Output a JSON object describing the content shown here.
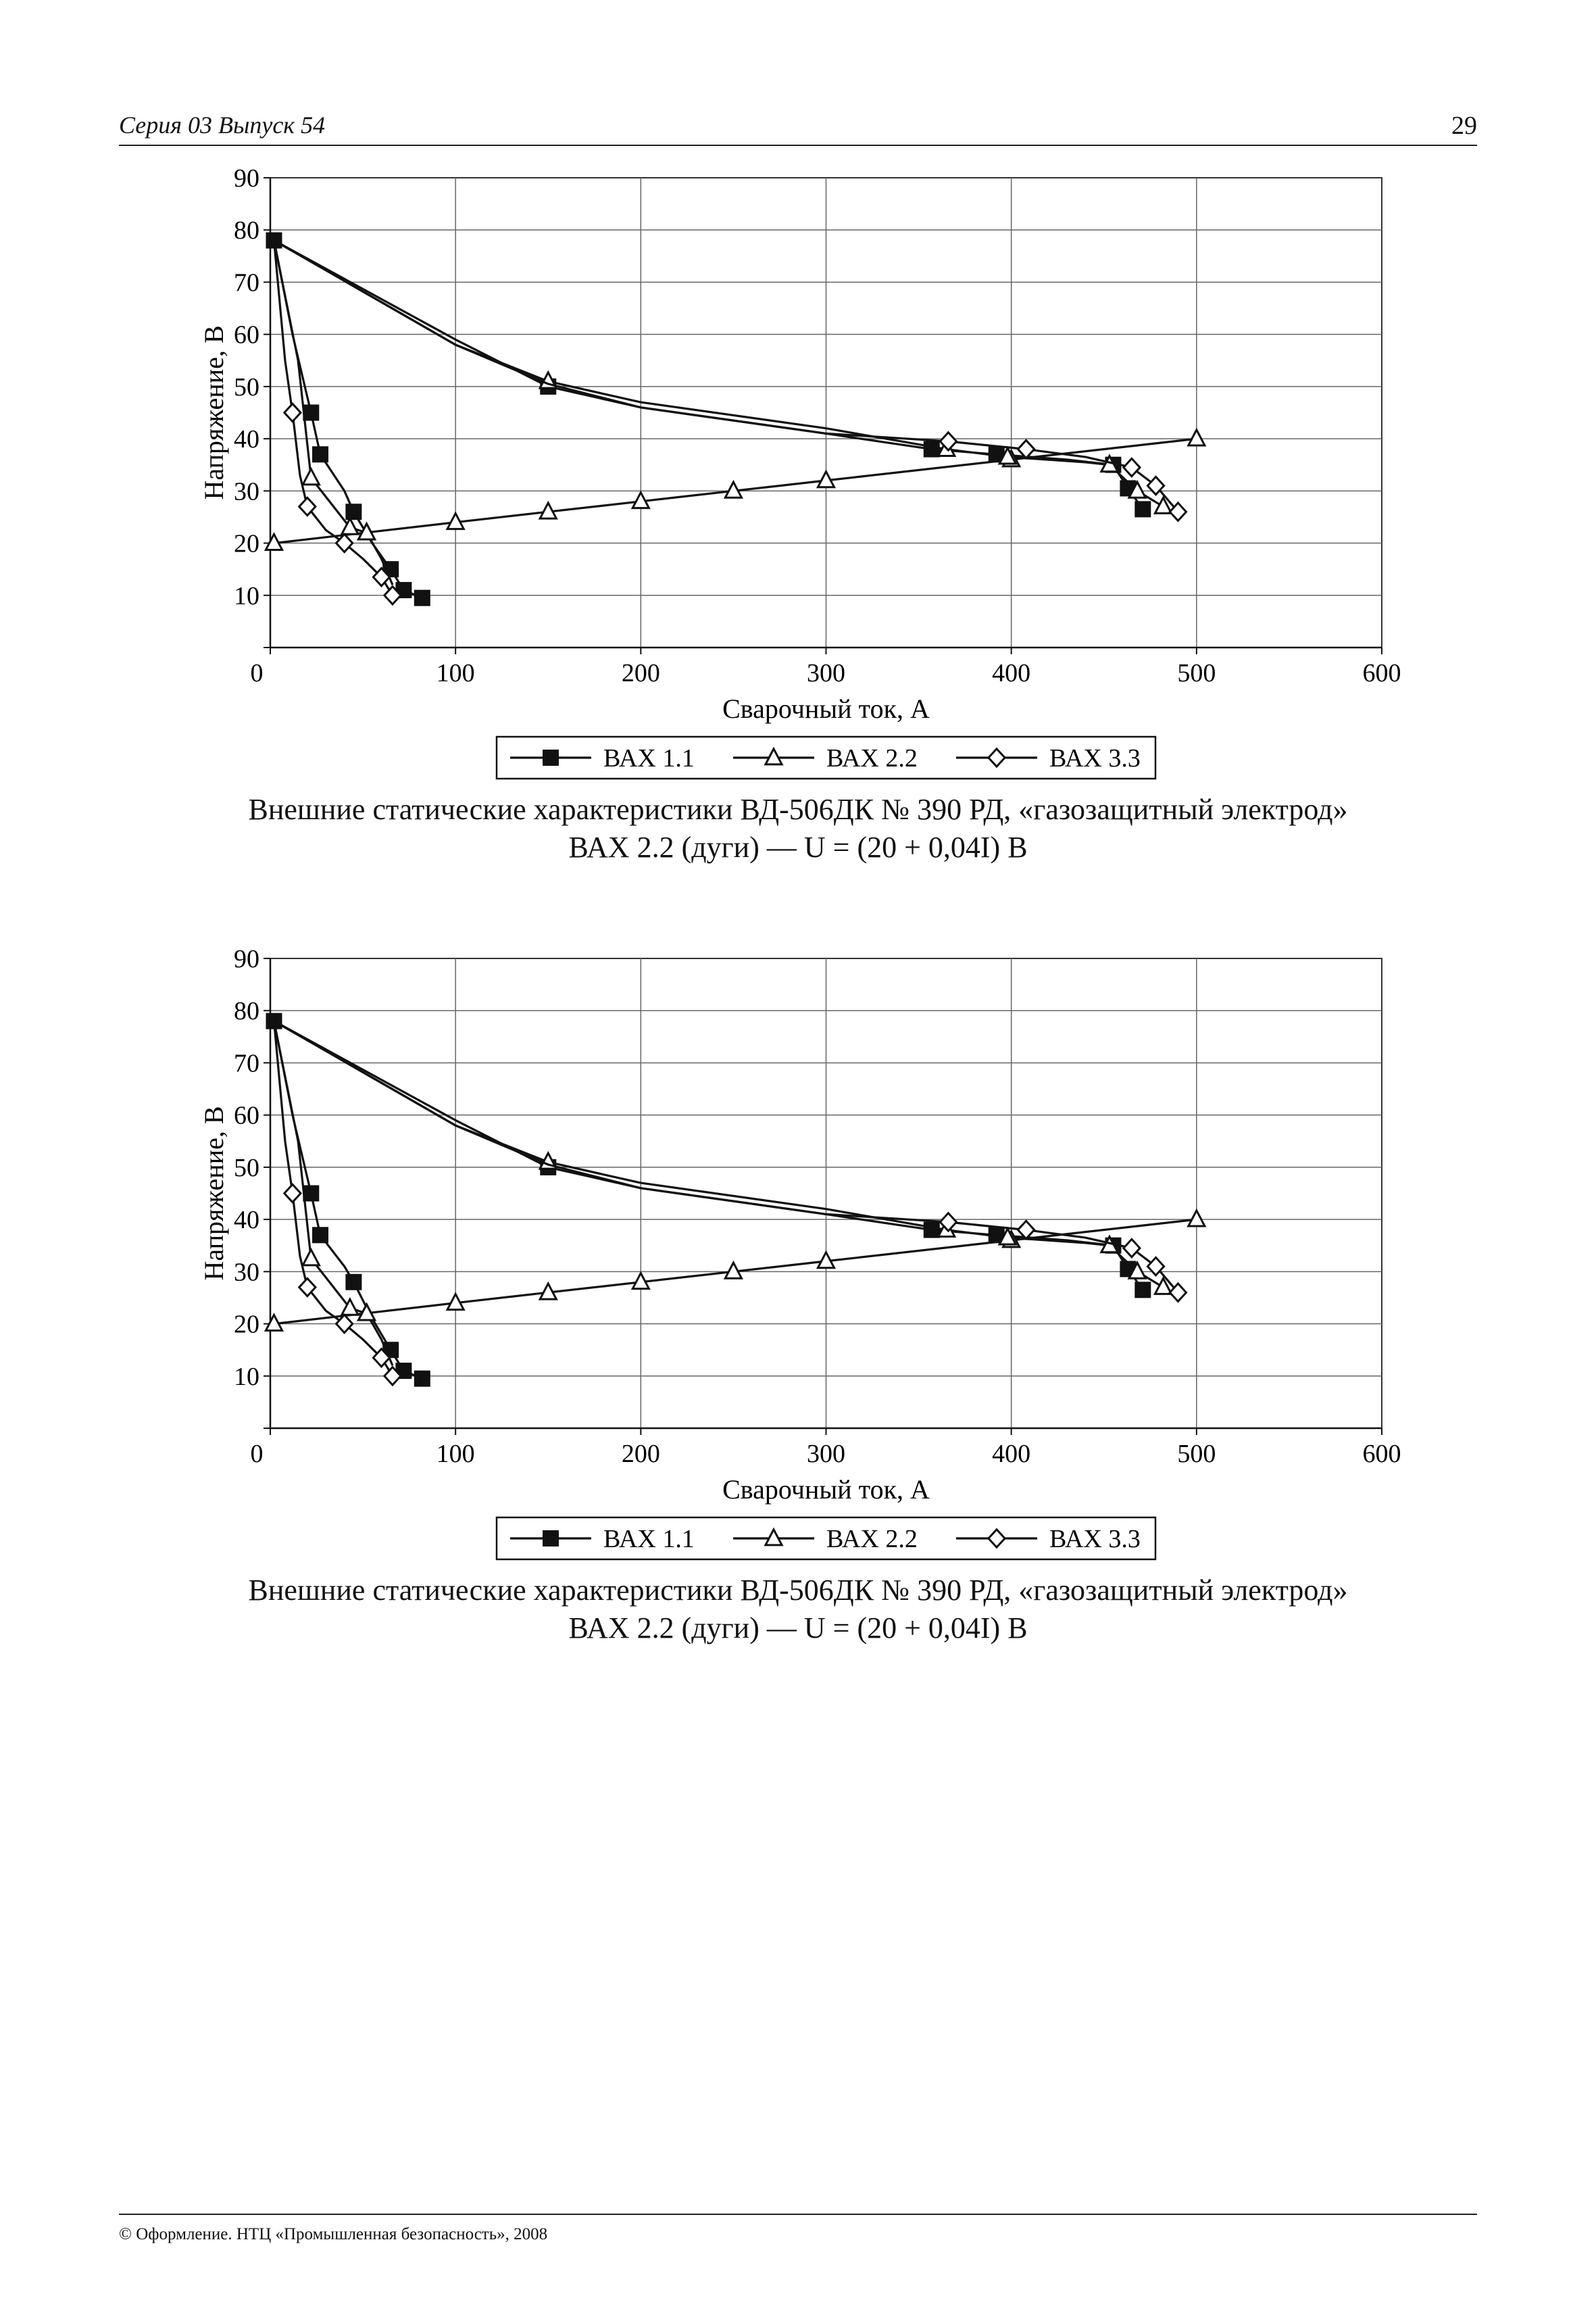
{
  "header": {
    "series": "Серия 03 Выпуск 54",
    "page_number": "29"
  },
  "charts": [
    {
      "caption_line1": "Внешние статические характеристики ВД-506ДК № 390 РД, «газозащитный электрод»",
      "caption_line2": "ВАХ 2.2 (дуги) — U = (20 + 0,04I) В"
    },
    {
      "caption_line1": "Внешние статические характеристики ВД-506ДК № 390 РД, «газозащитный электрод»",
      "caption_line2": "ВАХ 2.2 (дуги) — U = (20 + 0,04I) В"
    }
  ],
  "footer": {
    "text": "© Оформление. НТЦ «Промышленная безопасность», 2008"
  },
  "chart_data": [
    {
      "type": "line",
      "xlabel": "Сварочный ток, А",
      "ylabel": "Напряжение, В",
      "xlim": [
        0,
        600
      ],
      "ylim": [
        0,
        90
      ],
      "x_ticks": [
        0,
        100,
        200,
        300,
        400,
        500,
        600
      ],
      "y_ticks": [
        10,
        20,
        30,
        40,
        50,
        60,
        70,
        80,
        90
      ],
      "grid": true,
      "legend_position": "bottom",
      "series": [
        {
          "name": "ВАХ 1.1",
          "marker": "square",
          "points": [
            [
              2,
              78
            ],
            [
              22,
              45
            ],
            [
              27,
              37
            ],
            [
              45,
              26
            ],
            [
              65,
              15
            ],
            [
              72,
              11
            ],
            [
              82,
              9.5
            ],
            [
              150,
              50
            ],
            [
              357,
              38
            ],
            [
              392,
              37
            ],
            [
              455,
              35
            ],
            [
              463,
              30.5
            ],
            [
              471,
              26.5
            ]
          ],
          "lines": [
            [
              [
                2,
                78
              ],
              [
                12,
                60
              ],
              [
                22,
                45
              ],
              [
                27,
                37
              ],
              [
                40,
                30
              ],
              [
                45,
                26
              ],
              [
                55,
                20
              ],
              [
                65,
                15
              ],
              [
                72,
                11
              ],
              [
                82,
                9.5
              ]
            ],
            [
              [
                2,
                78
              ],
              [
                100,
                59
              ],
              [
                150,
                50
              ],
              [
                200,
                46
              ],
              [
                300,
                41
              ],
              [
                357,
                38
              ],
              [
                392,
                37
              ],
              [
                430,
                36
              ],
              [
                455,
                35
              ],
              [
                463,
                30.5
              ],
              [
                471,
                26.5
              ]
            ]
          ]
        },
        {
          "name": "ВАХ 2.2",
          "marker": "triangle",
          "points": [
            [
              2,
              20
            ],
            [
              52,
              22
            ],
            [
              100,
              24
            ],
            [
              150,
              26
            ],
            [
              200,
              28
            ],
            [
              250,
              30
            ],
            [
              300,
              32
            ],
            [
              400,
              36
            ],
            [
              500,
              40
            ],
            [
              150,
              51
            ],
            [
              365,
              38
            ],
            [
              398,
              36.5
            ],
            [
              453,
              35
            ],
            [
              468,
              30
            ],
            [
              482,
              27
            ],
            [
              22,
              32.5
            ],
            [
              43,
              23
            ],
            [
              52,
              22
            ]
          ],
          "lines": [
            [
              [
                2,
                20
              ],
              [
                100,
                24
              ],
              [
                150,
                26
              ],
              [
                200,
                28
              ],
              [
                250,
                30
              ],
              [
                300,
                32
              ],
              [
                400,
                36
              ],
              [
                500,
                40
              ]
            ],
            [
              [
                2,
                78
              ],
              [
                100,
                58
              ],
              [
                150,
                51
              ],
              [
                200,
                47
              ],
              [
                300,
                42
              ],
              [
                365,
                38
              ],
              [
                398,
                36.5
              ],
              [
                440,
                35.5
              ],
              [
                453,
                35
              ],
              [
                468,
                30
              ],
              [
                482,
                27
              ]
            ],
            [
              [
                2,
                78
              ],
              [
                15,
                55
              ],
              [
                22,
                32.5
              ],
              [
                43,
                23
              ],
              [
                52,
                22
              ],
              [
                60,
                17
              ],
              [
                66,
                12
              ]
            ]
          ]
        },
        {
          "name": "ВАХ 3.3",
          "marker": "diamond",
          "points": [
            [
              12,
              45
            ],
            [
              20,
              27
            ],
            [
              40,
              20
            ],
            [
              60,
              13.5
            ],
            [
              66,
              10
            ],
            [
              366,
              39.5
            ],
            [
              408,
              38
            ],
            [
              465,
              34.5
            ],
            [
              478,
              31
            ],
            [
              490,
              26
            ]
          ],
          "lines": [
            [
              [
                2,
                78
              ],
              [
                8,
                55
              ],
              [
                12,
                45
              ],
              [
                16,
                33
              ],
              [
                20,
                27
              ],
              [
                30,
                22.5
              ],
              [
                40,
                20
              ],
              [
                50,
                17
              ],
              [
                60,
                13.5
              ],
              [
                66,
                10
              ]
            ],
            [
              [
                2,
                78
              ],
              [
                100,
                58
              ],
              [
                150,
                50.5
              ],
              [
                200,
                46
              ],
              [
                300,
                41
              ],
              [
                366,
                39.5
              ],
              [
                408,
                38
              ],
              [
                440,
                36.5
              ],
              [
                465,
                34.5
              ],
              [
                478,
                31
              ],
              [
                490,
                26
              ]
            ]
          ]
        }
      ]
    },
    {
      "type": "line",
      "xlabel": "Сварочный ток, А",
      "ylabel": "Напряжение, В",
      "xlim": [
        0,
        600
      ],
      "ylim": [
        0,
        90
      ],
      "x_ticks": [
        0,
        100,
        200,
        300,
        400,
        500,
        600
      ],
      "y_ticks": [
        10,
        20,
        30,
        40,
        50,
        60,
        70,
        80,
        90
      ],
      "grid": true,
      "legend_position": "bottom",
      "series": [
        {
          "name": "ВАХ 1.1",
          "marker": "square",
          "points": [
            [
              2,
              78
            ],
            [
              22,
              45
            ],
            [
              27,
              37
            ],
            [
              45,
              28
            ],
            [
              65,
              15
            ],
            [
              72,
              11
            ],
            [
              82,
              9.5
            ],
            [
              150,
              50
            ],
            [
              357,
              38
            ],
            [
              392,
              37
            ],
            [
              455,
              35
            ],
            [
              463,
              30.5
            ],
            [
              471,
              26.5
            ]
          ],
          "lines": [
            [
              [
                2,
                78
              ],
              [
                12,
                60
              ],
              [
                22,
                45
              ],
              [
                27,
                37
              ],
              [
                40,
                31
              ],
              [
                45,
                28
              ],
              [
                55,
                21
              ],
              [
                65,
                15
              ],
              [
                72,
                11
              ],
              [
                82,
                9.5
              ]
            ],
            [
              [
                2,
                78
              ],
              [
                100,
                59
              ],
              [
                150,
                50
              ],
              [
                200,
                46
              ],
              [
                300,
                41
              ],
              [
                357,
                38
              ],
              [
                392,
                37
              ],
              [
                430,
                36
              ],
              [
                455,
                35
              ],
              [
                463,
                30.5
              ],
              [
                471,
                26.5
              ]
            ]
          ]
        },
        {
          "name": "ВАХ 2.2",
          "marker": "triangle",
          "points": [
            [
              2,
              20
            ],
            [
              52,
              22
            ],
            [
              100,
              24
            ],
            [
              150,
              26
            ],
            [
              200,
              28
            ],
            [
              250,
              30
            ],
            [
              300,
              32
            ],
            [
              400,
              36
            ],
            [
              500,
              40
            ],
            [
              150,
              51
            ],
            [
              365,
              38
            ],
            [
              398,
              36.5
            ],
            [
              453,
              35
            ],
            [
              468,
              30
            ],
            [
              482,
              27
            ],
            [
              22,
              32.5
            ],
            [
              43,
              23
            ],
            [
              52,
              22
            ]
          ],
          "lines": [
            [
              [
                2,
                20
              ],
              [
                100,
                24
              ],
              [
                150,
                26
              ],
              [
                200,
                28
              ],
              [
                250,
                30
              ],
              [
                300,
                32
              ],
              [
                400,
                36
              ],
              [
                500,
                40
              ]
            ],
            [
              [
                2,
                78
              ],
              [
                100,
                58
              ],
              [
                150,
                51
              ],
              [
                200,
                47
              ],
              [
                300,
                42
              ],
              [
                365,
                38
              ],
              [
                398,
                36.5
              ],
              [
                440,
                35.5
              ],
              [
                453,
                35
              ],
              [
                468,
                30
              ],
              [
                482,
                27
              ]
            ],
            [
              [
                2,
                78
              ],
              [
                15,
                55
              ],
              [
                22,
                32.5
              ],
              [
                43,
                23
              ],
              [
                52,
                22
              ],
              [
                60,
                17
              ],
              [
                66,
                12
              ]
            ]
          ]
        },
        {
          "name": "ВАХ 3.3",
          "marker": "diamond",
          "points": [
            [
              12,
              45
            ],
            [
              20,
              27
            ],
            [
              40,
              20
            ],
            [
              60,
              13.5
            ],
            [
              66,
              10
            ],
            [
              366,
              39.5
            ],
            [
              408,
              38
            ],
            [
              465,
              34.5
            ],
            [
              478,
              31
            ],
            [
              490,
              26
            ]
          ],
          "lines": [
            [
              [
                2,
                78
              ],
              [
                8,
                55
              ],
              [
                12,
                45
              ],
              [
                16,
                33
              ],
              [
                20,
                27
              ],
              [
                30,
                22.5
              ],
              [
                40,
                20
              ],
              [
                50,
                17
              ],
              [
                60,
                13.5
              ],
              [
                66,
                10
              ]
            ],
            [
              [
                2,
                78
              ],
              [
                100,
                58
              ],
              [
                150,
                50.5
              ],
              [
                200,
                46
              ],
              [
                300,
                41
              ],
              [
                366,
                39.5
              ],
              [
                408,
                38
              ],
              [
                440,
                36.5
              ],
              [
                465,
                34.5
              ],
              [
                478,
                31
              ],
              [
                490,
                26
              ]
            ]
          ]
        }
      ]
    }
  ]
}
